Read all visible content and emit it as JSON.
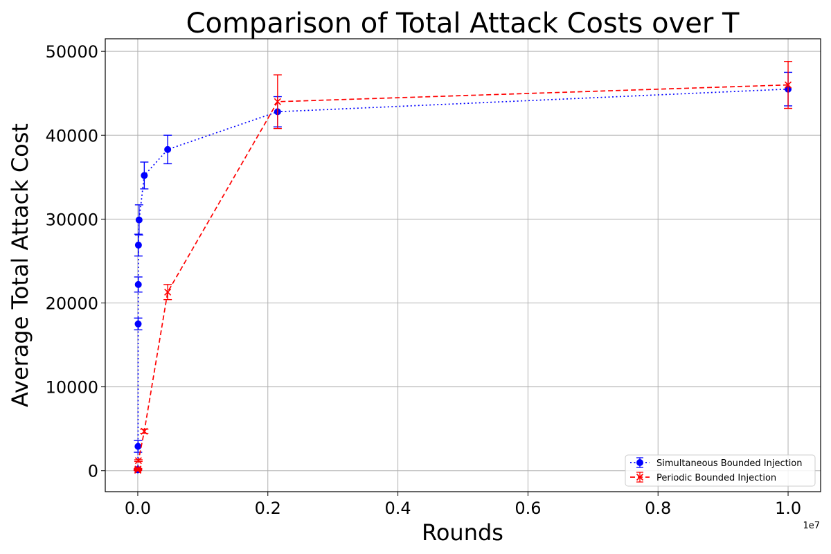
{
  "chart_data": {
    "type": "line",
    "title": "Comparison of Total Attack Costs over T",
    "xlabel": "Rounds",
    "ylabel": "Average Total Attack Cost",
    "x_offset_label": "1e7",
    "xlim": [
      -0.05,
      1.05
    ],
    "ylim": [
      -2500,
      51500
    ],
    "x_ticks": [
      0.0,
      0.2,
      0.4,
      0.6,
      0.8,
      1.0
    ],
    "x_tick_labels": [
      "0.0",
      "0.2",
      "0.4",
      "0.6",
      "0.8",
      "1.0"
    ],
    "y_ticks": [
      0,
      10000,
      20000,
      30000,
      40000,
      50000
    ],
    "y_tick_labels": [
      "0",
      "10000",
      "20000",
      "30000",
      "40000",
      "50000"
    ],
    "grid": true,
    "legend_position": "lower-right",
    "series": [
      {
        "name": "Simultaneous Bounded Injection",
        "color": "#0000ff",
        "line_style": "dotted",
        "marker": "circle",
        "points": [
          {
            "x": 0.0,
            "y": 100,
            "err": 60
          },
          {
            "x": 0.0002,
            "y": 150,
            "err": 80
          },
          {
            "x": 0.0004,
            "y": 2900,
            "err": 700
          },
          {
            "x": 0.0006,
            "y": 17500,
            "err": 700
          },
          {
            "x": 0.0008,
            "y": 22200,
            "err": 900
          },
          {
            "x": 0.001,
            "y": 26900,
            "err": 1300
          },
          {
            "x": 0.002,
            "y": 29900,
            "err": 1800
          },
          {
            "x": 0.01,
            "y": 35200,
            "err": 1600
          },
          {
            "x": 0.046,
            "y": 38300,
            "err": 1700
          },
          {
            "x": 0.215,
            "y": 42800,
            "err": 1800
          },
          {
            "x": 1.0,
            "y": 45500,
            "err": 2000
          }
        ]
      },
      {
        "name": "Periodic Bounded Injection",
        "color": "#ff0000",
        "line_style": "dashed",
        "marker": "x",
        "points": [
          {
            "x": 0.0,
            "y": 50,
            "err": 30
          },
          {
            "x": 0.0002,
            "y": 100,
            "err": 40
          },
          {
            "x": 0.0004,
            "y": 200,
            "err": 60
          },
          {
            "x": 0.001,
            "y": 1200,
            "err": 100
          },
          {
            "x": 0.01,
            "y": 4700,
            "err": 250
          },
          {
            "x": 0.046,
            "y": 21300,
            "err": 900
          },
          {
            "x": 0.215,
            "y": 44000,
            "err": 3200
          },
          {
            "x": 1.0,
            "y": 46000,
            "err": 2800
          }
        ]
      }
    ]
  }
}
